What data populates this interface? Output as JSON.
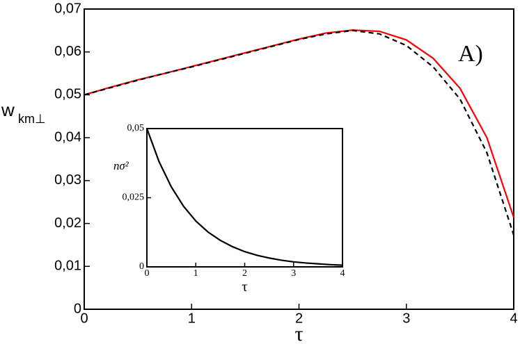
{
  "chart_data": [
    {
      "type": "line",
      "x_label": "τ",
      "y_label": "w",
      "y_label_subscript": "km⊥",
      "annotation": "A)",
      "xlim": [
        0,
        4
      ],
      "ylim": [
        0,
        0.07
      ],
      "xticks": [
        0,
        1,
        2,
        3,
        4
      ],
      "yticks": [
        0,
        {
          "value": 0.01,
          "label": "0,01"
        },
        {
          "value": 0.02,
          "label": "0,02"
        },
        {
          "value": 0.03,
          "label": "0,03"
        },
        {
          "value": 0.04,
          "label": "0,04"
        },
        {
          "value": 0.05,
          "label": "0,05"
        },
        {
          "value": 0.06,
          "label": "0,06"
        },
        {
          "value": 0.07,
          "label": "0,07"
        }
      ],
      "x": [
        0,
        0.25,
        0.5,
        0.75,
        1,
        1.25,
        1.5,
        1.75,
        2,
        2.25,
        2.5,
        2.75,
        3,
        3.25,
        3.5,
        3.75,
        4
      ],
      "series": [
        {
          "color": "#ff0000",
          "dash": false,
          "values": [
            0.05,
            0.0518,
            0.0535,
            0.055,
            0.0566,
            0.0582,
            0.0598,
            0.0614,
            0.063,
            0.0644,
            0.0651,
            0.0648,
            0.0628,
            0.0585,
            0.0515,
            0.04,
            0.0214
          ]
        },
        {
          "color": "#000000",
          "dash": true,
          "values": [
            0.05,
            0.0517,
            0.0534,
            0.055,
            0.0565,
            0.0581,
            0.0597,
            0.0613,
            0.0629,
            0.0642,
            0.065,
            0.0642,
            0.0615,
            0.0565,
            0.049,
            0.0365,
            0.0173
          ]
        }
      ]
    },
    {
      "type": "line",
      "x_label": "τ",
      "y_label": "nσ²",
      "xlim": [
        0,
        4
      ],
      "ylim": [
        0,
        0.05
      ],
      "xticks": [
        0,
        1,
        2,
        3,
        4
      ],
      "yticks": [
        0,
        {
          "value": 0.025,
          "label": "0,025"
        },
        {
          "value": 0.05,
          "label": "0,05"
        }
      ],
      "x": [
        0,
        0.25,
        0.5,
        0.75,
        1,
        1.25,
        1.5,
        1.75,
        2,
        2.25,
        2.5,
        2.75,
        3,
        3.25,
        3.5,
        3.75,
        4
      ],
      "series": [
        {
          "color": "#000000",
          "dash": false,
          "values": [
            0.05,
            0.038,
            0.0289,
            0.0219,
            0.0166,
            0.0126,
            0.0096,
            0.0073,
            0.0055,
            0.0042,
            0.0032,
            0.0024,
            0.0018,
            0.0014,
            0.0011,
            0.0008,
            0.0006
          ]
        }
      ]
    }
  ]
}
